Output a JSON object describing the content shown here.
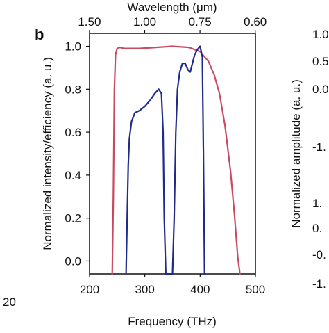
{
  "panel_label": "b",
  "left_neighbor": {
    "tick_labels": [
      "20"
    ]
  },
  "right_neighbor": {
    "ylabel": "Normalized amplitude (a. u.)",
    "tick_labels": [
      "1.0",
      "0.5",
      "0.0",
      "-1.",
      "1.",
      "0.",
      "-0.",
      "-1."
    ]
  },
  "chart_data": {
    "type": "line",
    "xlabel": "Frequency (THz)",
    "ylabel": "Normalized intensity/efficiency (a. u.)",
    "x2label": "Wavelength (μm)",
    "xlim": [
      200,
      500
    ],
    "ylim": [
      -0.06,
      1.06
    ],
    "xticks": [
      200,
      300,
      400,
      500
    ],
    "xtick_labels": [
      "200",
      "300",
      "400",
      "500"
    ],
    "yticks": [
      0.0,
      0.2,
      0.4,
      0.6,
      0.8,
      1.0
    ],
    "ytick_labels": [
      "0.0",
      "0.2",
      "0.4",
      "0.6",
      "0.8",
      "1.0"
    ],
    "x2ticks_um": [
      1.5,
      1.0,
      0.75,
      0.6
    ],
    "x2tick_labels": [
      "1.50",
      "1.00",
      "0.75",
      "0.60"
    ],
    "grid": false,
    "legend": "none",
    "series": [
      {
        "color": "#c94a60",
        "x": [
          241,
          243,
          245,
          247,
          250,
          255,
          262,
          272,
          290,
          320,
          350,
          380,
          400,
          415,
          425,
          435,
          445,
          455,
          462,
          468,
          472
        ],
        "y": [
          -0.06,
          0.3,
          0.8,
          0.96,
          0.99,
          0.995,
          0.99,
          0.99,
          0.99,
          0.995,
          1.0,
          0.995,
          0.975,
          0.93,
          0.87,
          0.78,
          0.63,
          0.42,
          0.22,
          0.02,
          -0.06
        ]
      },
      {
        "color": "#1f2a8a",
        "x": [
          266,
          268,
          270,
          272,
          276,
          282,
          290,
          300,
          310,
          318,
          325,
          330,
          333,
          335,
          338,
          350,
          353,
          356,
          359,
          363,
          368,
          373,
          378,
          382,
          386,
          390,
          395,
          400,
          404,
          406,
          408
        ],
        "y": [
          -0.06,
          0.2,
          0.45,
          0.57,
          0.65,
          0.69,
          0.7,
          0.72,
          0.75,
          0.78,
          0.8,
          0.78,
          0.6,
          0.2,
          -0.06,
          -0.06,
          0.2,
          0.6,
          0.8,
          0.88,
          0.92,
          0.92,
          0.89,
          0.88,
          0.92,
          0.96,
          0.985,
          1.0,
          0.95,
          0.5,
          -0.06
        ]
      }
    ]
  }
}
